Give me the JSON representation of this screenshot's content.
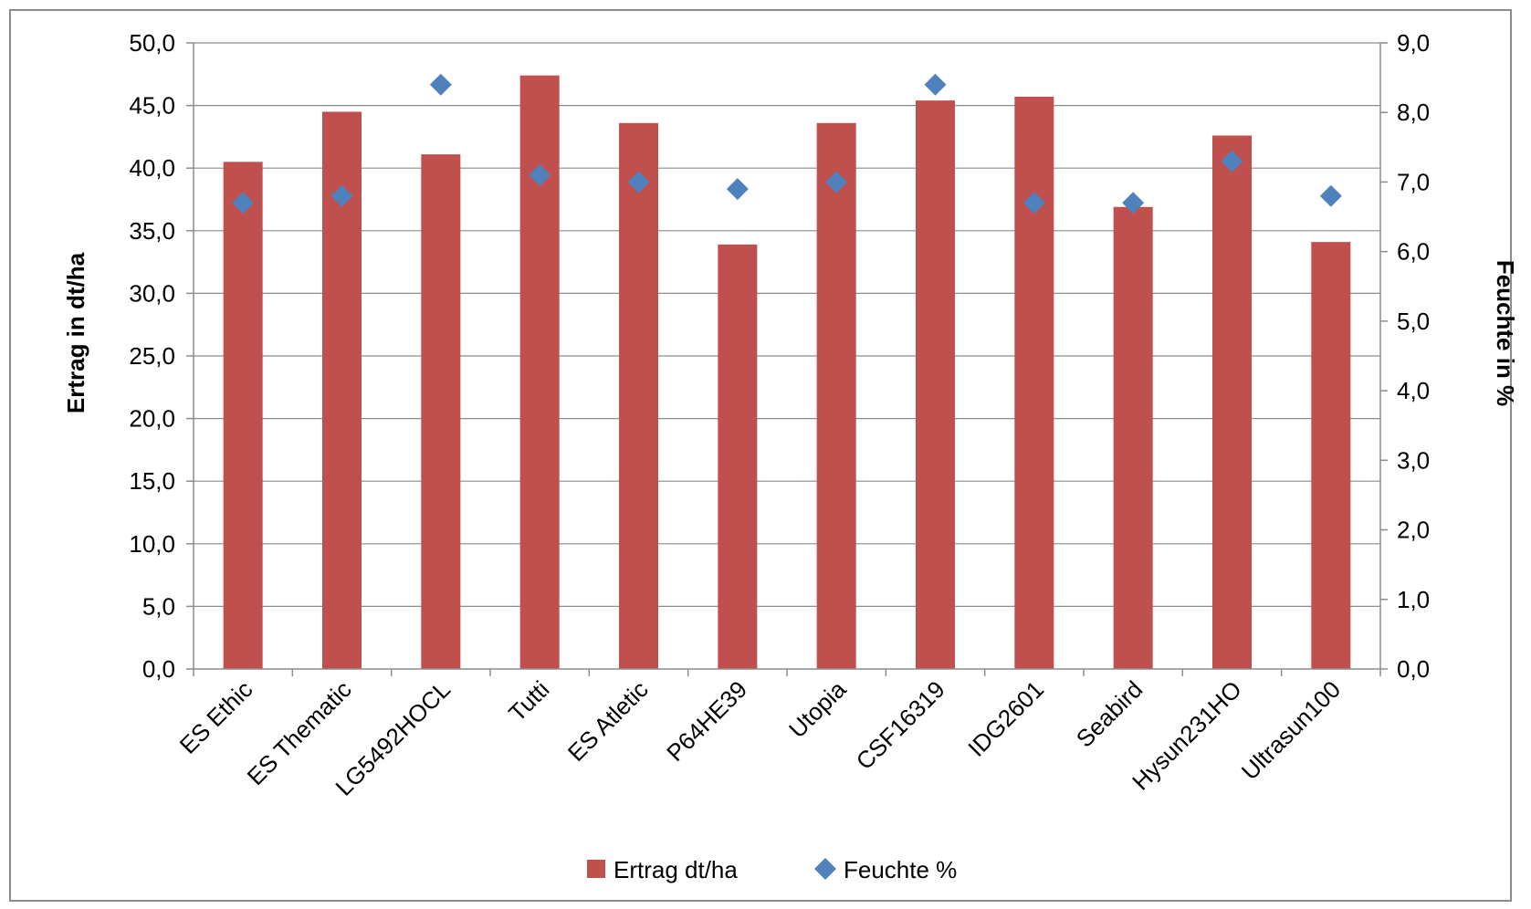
{
  "chart_data": {
    "type": "bar",
    "categories": [
      "ES Ethic",
      "ES Thematic",
      "LG5492HOCL",
      "Tutti",
      "ES Atletic",
      "P64HE39",
      "Utopia",
      "CSF16319",
      "IDG2601",
      "Seabird",
      "Hysun231HO",
      "Ultrasun100"
    ],
    "series": [
      {
        "name": "Ertrag dt/ha",
        "type": "bar",
        "axis": "left",
        "color": "#C0504D",
        "values": [
          40.5,
          44.5,
          41.1,
          47.4,
          43.6,
          33.9,
          43.6,
          45.4,
          45.7,
          36.9,
          42.6,
          34.1
        ]
      },
      {
        "name": "Feuchte %",
        "type": "scatter",
        "marker": "diamond",
        "axis": "right",
        "color": "#4F81BD",
        "values": [
          6.7,
          6.8,
          8.4,
          7.1,
          7.0,
          6.9,
          7.0,
          8.4,
          6.7,
          6.7,
          7.3,
          6.8
        ]
      }
    ],
    "ylabel": "Ertrag in dt/ha",
    "ylabel_right": "Feuchte in %",
    "ylim": [
      0,
      50
    ],
    "ylim_right": [
      0,
      9
    ],
    "yticks": [
      "0,0",
      "5,0",
      "10,0",
      "15,0",
      "20,0",
      "25,0",
      "30,0",
      "35,0",
      "40,0",
      "45,0",
      "50,0"
    ],
    "yticks_right": [
      "0,0",
      "1,0",
      "2,0",
      "3,0",
      "4,0",
      "5,0",
      "6,0",
      "7,0",
      "8,0",
      "9,0"
    ],
    "grid": true,
    "legend_position": "bottom"
  }
}
